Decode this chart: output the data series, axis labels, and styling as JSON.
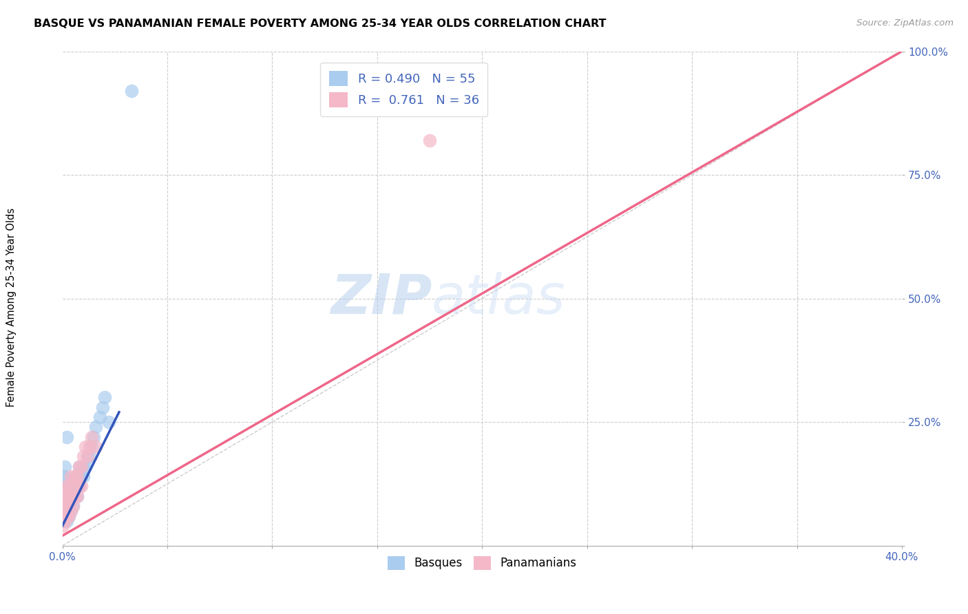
{
  "title": "BASQUE VS PANAMANIAN FEMALE POVERTY AMONG 25-34 YEAR OLDS CORRELATION CHART",
  "source": "Source: ZipAtlas.com",
  "ylabel": "Female Poverty Among 25-34 Year Olds",
  "xlim": [
    0.0,
    0.4
  ],
  "ylim": [
    0.0,
    1.0
  ],
  "xtick_positions": [
    0.0,
    0.05,
    0.1,
    0.15,
    0.2,
    0.25,
    0.3,
    0.35,
    0.4
  ],
  "xtick_labels_show": [
    "0.0%",
    "",
    "",
    "",
    "",
    "",
    "",
    "",
    "40.0%"
  ],
  "ytick_positions": [
    0.0,
    0.25,
    0.5,
    0.75,
    1.0
  ],
  "ytick_labels": [
    "",
    "25.0%",
    "50.0%",
    "75.0%",
    "100.0%"
  ],
  "basque_color": "#aaccee",
  "panamanian_color": "#f4b8c8",
  "basque_line_color": "#3355bb",
  "panamanian_line_color": "#ee6688",
  "ref_line_color": "#cccccc",
  "R_basque": 0.49,
  "N_basque": 55,
  "R_pana": 0.761,
  "N_pana": 36,
  "watermark_zip": "ZIP",
  "watermark_atlas": "atlas",
  "basque_x": [
    0.0,
    0.0,
    0.0,
    0.0,
    0.0,
    0.0,
    0.001,
    0.001,
    0.001,
    0.001,
    0.001,
    0.001,
    0.001,
    0.001,
    0.001,
    0.002,
    0.002,
    0.002,
    0.002,
    0.002,
    0.002,
    0.002,
    0.002,
    0.003,
    0.003,
    0.003,
    0.003,
    0.003,
    0.004,
    0.004,
    0.004,
    0.005,
    0.005,
    0.005,
    0.006,
    0.006,
    0.007,
    0.007,
    0.008,
    0.008,
    0.008,
    0.009,
    0.01,
    0.01,
    0.011,
    0.012,
    0.013,
    0.014,
    0.015,
    0.016,
    0.018,
    0.019,
    0.02,
    0.022,
    0.033
  ],
  "basque_y": [
    0.06,
    0.07,
    0.08,
    0.1,
    0.12,
    0.14,
    0.05,
    0.06,
    0.07,
    0.08,
    0.09,
    0.1,
    0.12,
    0.14,
    0.16,
    0.05,
    0.06,
    0.07,
    0.08,
    0.09,
    0.1,
    0.12,
    0.22,
    0.06,
    0.07,
    0.08,
    0.1,
    0.12,
    0.07,
    0.09,
    0.11,
    0.08,
    0.1,
    0.12,
    0.1,
    0.12,
    0.1,
    0.14,
    0.12,
    0.14,
    0.16,
    0.14,
    0.14,
    0.16,
    0.16,
    0.18,
    0.18,
    0.2,
    0.22,
    0.24,
    0.26,
    0.28,
    0.3,
    0.25,
    0.92
  ],
  "pana_x": [
    0.0,
    0.0,
    0.0,
    0.0,
    0.001,
    0.001,
    0.001,
    0.001,
    0.002,
    0.002,
    0.002,
    0.002,
    0.003,
    0.003,
    0.003,
    0.004,
    0.004,
    0.004,
    0.005,
    0.005,
    0.005,
    0.006,
    0.006,
    0.007,
    0.007,
    0.008,
    0.008,
    0.009,
    0.009,
    0.01,
    0.011,
    0.012,
    0.013,
    0.014,
    0.016,
    0.175
  ],
  "pana_y": [
    0.04,
    0.06,
    0.08,
    0.1,
    0.05,
    0.07,
    0.09,
    0.11,
    0.06,
    0.08,
    0.1,
    0.12,
    0.06,
    0.09,
    0.12,
    0.07,
    0.1,
    0.14,
    0.08,
    0.1,
    0.13,
    0.1,
    0.14,
    0.1,
    0.14,
    0.12,
    0.16,
    0.12,
    0.16,
    0.18,
    0.2,
    0.18,
    0.2,
    0.22,
    0.2,
    0.82
  ],
  "basque_line_x": [
    0.0,
    0.027
  ],
  "basque_line_y": [
    0.04,
    0.27
  ],
  "pana_line_x": [
    0.0,
    0.4
  ],
  "pana_line_y": [
    0.02,
    1.0
  ]
}
